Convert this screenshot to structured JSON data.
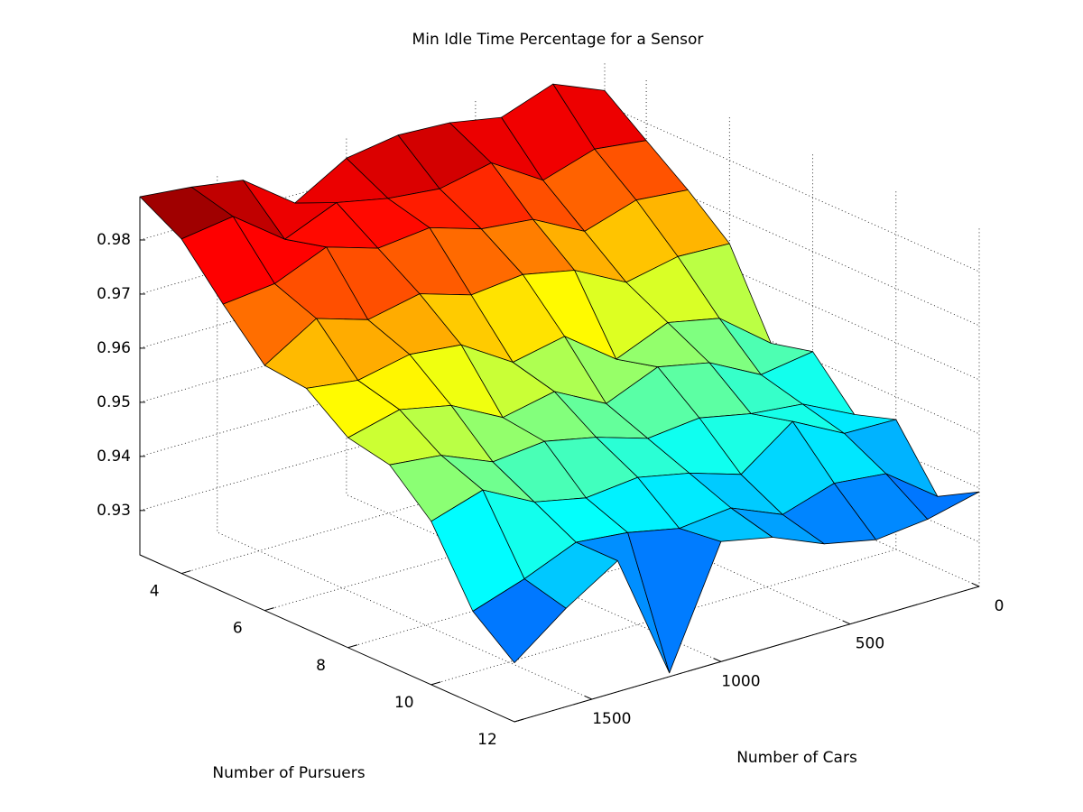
{
  "chart_data": {
    "type": "surface",
    "title": "Min Idle Time Percentage for a Sensor",
    "xlabel": "Number of Cars",
    "ylabel": "Number of Pursuers",
    "x": [
      0,
      200,
      400,
      600,
      800,
      1000,
      1200,
      1400,
      1600,
      1800
    ],
    "y": [
      3,
      4,
      5,
      6,
      7,
      8,
      9,
      10,
      11,
      12
    ],
    "z": [
      [
        0.9826,
        0.9866,
        0.9832,
        0.985,
        0.9855,
        0.984,
        0.9785,
        0.9855,
        0.987,
        0.988
      ],
      [
        0.9768,
        0.978,
        0.975,
        0.981,
        0.979,
        0.98,
        0.982,
        0.978,
        0.985,
        0.9836
      ],
      [
        0.9711,
        0.972,
        0.969,
        0.974,
        0.975,
        0.978,
        0.977,
        0.98,
        0.976,
        0.975
      ],
      [
        0.9646,
        0.965,
        0.963,
        0.968,
        0.97,
        0.969,
        0.972,
        0.97,
        0.973,
        0.9671
      ],
      [
        0.9496,
        0.957,
        0.959,
        0.955,
        0.962,
        0.96,
        0.966,
        0.967,
        0.965,
        0.9663
      ],
      [
        0.9515,
        0.95,
        0.955,
        0.957,
        0.953,
        0.958,
        0.956,
        0.961,
        0.963,
        0.9606
      ],
      [
        0.9433,
        0.948,
        0.949,
        0.951,
        0.95,
        0.953,
        0.955,
        0.954,
        0.958,
        0.959
      ],
      [
        0.9458,
        0.946,
        0.951,
        0.944,
        0.947,
        0.949,
        0.948,
        0.95,
        0.955,
        0.952
      ],
      [
        0.935,
        0.942,
        0.943,
        0.94,
        0.944,
        0.943,
        0.945,
        0.946,
        0.942,
        0.9388
      ],
      [
        0.9393,
        0.937,
        0.936,
        0.938,
        0.942,
        0.944,
        0.9225,
        0.946,
        0.94,
        0.9327
      ]
    ],
    "xlim": [
      0,
      1800
    ],
    "ylim": [
      3,
      12
    ],
    "zlim": [
      0.9218,
      0.988
    ],
    "xticks": [
      0,
      500,
      1000,
      1500
    ],
    "yticks": [
      4,
      6,
      8,
      10,
      12
    ],
    "zticks": [
      0.93,
      0.94,
      0.95,
      0.96,
      0.97,
      0.98
    ],
    "colormap": "jet",
    "grid": true
  }
}
